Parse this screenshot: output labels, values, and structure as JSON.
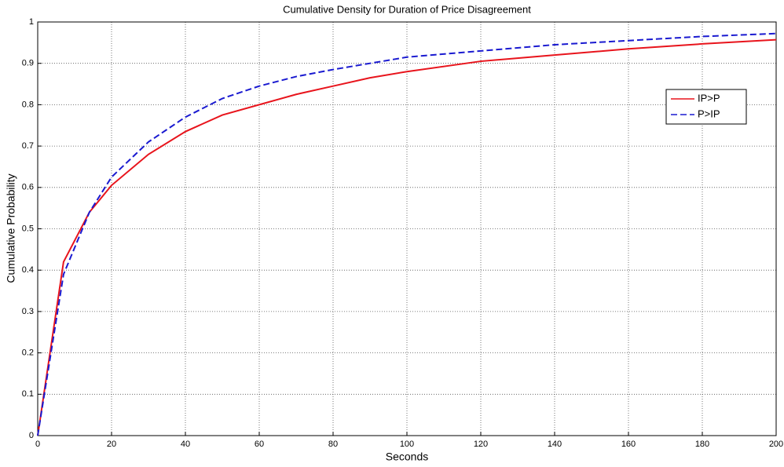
{
  "chart_data": {
    "type": "line",
    "title": "Cumulative Density for Duration of Price Disagreement",
    "x_label": "Seconds",
    "y_label": "Cumulative Probability",
    "x": [
      0,
      7,
      14,
      20,
      30,
      40,
      50,
      60,
      70,
      80,
      90,
      100,
      120,
      140,
      160,
      180,
      200
    ],
    "series": [
      {
        "name": "IP>P",
        "color": "#e8141c",
        "linestyle": "solid",
        "values": [
          0,
          0.42,
          0.54,
          0.605,
          0.68,
          0.735,
          0.775,
          0.8,
          0.825,
          0.845,
          0.865,
          0.88,
          0.905,
          0.92,
          0.935,
          0.947,
          0.957
        ]
      },
      {
        "name": "P>IP",
        "color": "#1a1ad0",
        "linestyle": "dashed",
        "values": [
          0,
          0.39,
          0.54,
          0.625,
          0.71,
          0.77,
          0.815,
          0.845,
          0.868,
          0.885,
          0.9,
          0.915,
          0.93,
          0.945,
          0.955,
          0.965,
          0.972
        ]
      }
    ],
    "xlim": [
      0,
      200
    ],
    "ylim": [
      0,
      1
    ],
    "xticks": [
      0,
      20,
      40,
      60,
      80,
      100,
      120,
      140,
      160,
      180,
      200
    ],
    "yticks": [
      0,
      0.1,
      0.2,
      0.3,
      0.4,
      0.5,
      0.6,
      0.7,
      0.8,
      0.9,
      1
    ],
    "grid": true,
    "legend": "upper right"
  }
}
